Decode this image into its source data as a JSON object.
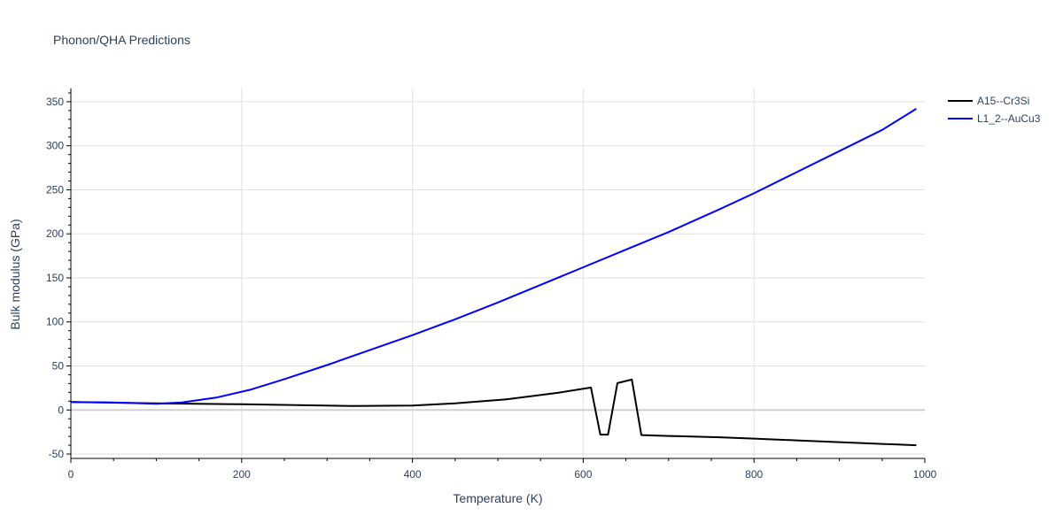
{
  "chart_data": {
    "type": "line",
    "title": "Phonon/QHA Predictions",
    "xlabel": "Temperature (K)",
    "ylabel": "Bulk modulus (GPa)",
    "xlim": [
      0,
      1000
    ],
    "ylim": [
      -55,
      365
    ],
    "xticks": [
      0,
      200,
      400,
      600,
      800,
      1000
    ],
    "yticks": [
      -50,
      0,
      50,
      100,
      150,
      200,
      250,
      300,
      350
    ],
    "grid": true,
    "legend_position": "top-right",
    "series": [
      {
        "name": "A15--Cr3Si",
        "color": "#000000",
        "x": [
          0,
          100,
          200,
          330,
          400,
          450,
          510,
          570,
          609,
          620,
          629,
          640,
          657,
          668,
          700,
          760,
          800,
          850,
          900,
          950,
          990
        ],
        "y": [
          9,
          7.5,
          6.5,
          4.5,
          5,
          7.5,
          12,
          19.5,
          25.5,
          -28,
          -28,
          30.5,
          34.5,
          -28.5,
          -29.5,
          -31,
          -32.5,
          -34.5,
          -36.5,
          -38.5,
          -40
        ]
      },
      {
        "name": "L1_2--AuCu3",
        "color": "#0000ff",
        "x": [
          0,
          50,
          100,
          130,
          170,
          210,
          250,
          300,
          350,
          400,
          450,
          500,
          550,
          600,
          650,
          700,
          760,
          800,
          850,
          900,
          950,
          990
        ],
        "y": [
          9,
          8.5,
          7,
          8.5,
          14,
          23,
          35,
          51,
          68,
          85,
          103,
          122,
          142,
          162,
          182,
          202,
          228,
          246,
          270,
          294,
          318,
          342
        ]
      }
    ]
  }
}
